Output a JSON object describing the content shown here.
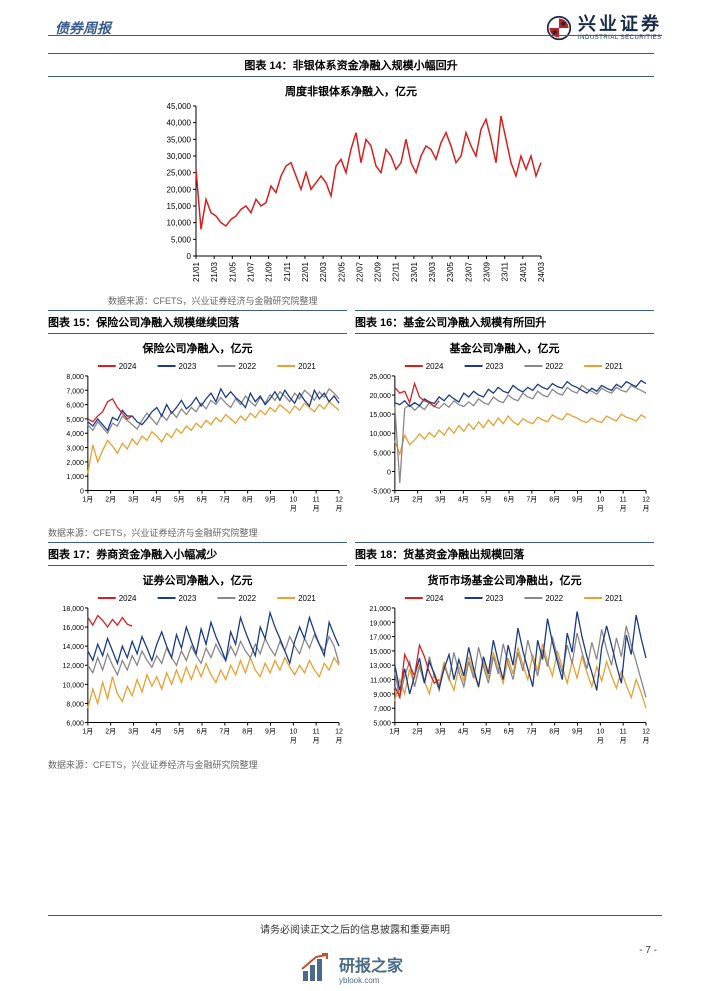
{
  "header": {
    "category": "债券周报",
    "logo_cn": "兴业证券",
    "logo_en": "INDUSTRIAL SECURITIES"
  },
  "chart14": {
    "title": "图表 14：非银体系资金净融入规模小幅回升",
    "subtitle": "周度非银体系净融入，亿元",
    "type": "line",
    "color": "#d62020",
    "ylim": [
      0,
      45000
    ],
    "ytick_step": 5000,
    "yticks": [
      "0",
      "5,000",
      "10,000",
      "15,000",
      "20,000",
      "25,000",
      "30,000",
      "35,000",
      "40,000",
      "45,000"
    ],
    "xlabels": [
      "21/01",
      "21/03",
      "21/05",
      "21/07",
      "21/09",
      "21/11",
      "22/01",
      "22/03",
      "22/05",
      "22/07",
      "22/09",
      "22/11",
      "23/01",
      "23/03",
      "23/05",
      "23/07",
      "23/09",
      "23/11",
      "24/01",
      "24/03"
    ],
    "values": [
      26000,
      8000,
      17000,
      13000,
      12000,
      10000,
      9000,
      11000,
      12000,
      14000,
      15000,
      13000,
      17000,
      15000,
      16000,
      21000,
      19000,
      24000,
      27000,
      28000,
      24000,
      20000,
      25000,
      20000,
      22000,
      24000,
      22000,
      18000,
      27000,
      29000,
      25000,
      32000,
      37000,
      28000,
      35000,
      33000,
      27000,
      25000,
      32000,
      30000,
      26000,
      28000,
      35000,
      28000,
      25000,
      30000,
      33000,
      32000,
      29000,
      34000,
      37000,
      33000,
      28000,
      30000,
      37000,
      33000,
      30000,
      38000,
      41000,
      35000,
      28000,
      42000,
      35000,
      28000,
      24000,
      30000,
      26000,
      30000,
      24000,
      28000
    ]
  },
  "source": "数据来源：CFETS，兴业证券经济与金融研究院整理",
  "chart15": {
    "title": "图表 15：保险公司净融入规模继续回落",
    "subtitle": "保险公司净融入，亿元",
    "ylim": [
      0,
      8000
    ],
    "yticks": [
      "0",
      "1,000",
      "2,000",
      "3,000",
      "4,000",
      "5,000",
      "6,000",
      "7,000",
      "8,000"
    ],
    "xlabels": [
      "1月",
      "2月",
      "3月",
      "4月",
      "5月",
      "6月",
      "7月",
      "8月",
      "9月",
      "10月",
      "11月",
      "12月"
    ],
    "series": {
      "2024": {
        "color": "#d62020",
        "values": [
          5000,
          4800,
          5200,
          5500,
          6200,
          6400,
          5800,
          5400,
          5000,
          5200
        ]
      },
      "2023": {
        "color": "#1a3a8a",
        "values": [
          4800,
          4500,
          5000,
          4600,
          4200,
          5100,
          4900,
          5600,
          5200,
          5200,
          4800,
          4600,
          5000,
          5500,
          5800,
          5200,
          6000,
          5400,
          5800,
          6300,
          5700,
          6000,
          6500,
          5900,
          6400,
          6800,
          6200,
          7100,
          6500,
          6900,
          6500,
          6200,
          5800,
          6800,
          6200,
          6600,
          6000,
          6400,
          6900,
          6300,
          7000,
          6500,
          6100,
          6800,
          6300,
          5900,
          7000,
          6400,
          6800,
          6200,
          6600,
          6100
        ]
      },
      "2022": {
        "color": "#888888",
        "values": [
          4600,
          4200,
          4800,
          4400,
          4000,
          4700,
          4500,
          5200,
          4900,
          4600,
          4300,
          4900,
          5400,
          5000,
          4600,
          5300,
          4900,
          5500,
          5100,
          5700,
          5300,
          5800,
          5500,
          6100,
          5700,
          6300,
          6000,
          6500,
          6100,
          5800,
          6400,
          6000,
          6600,
          6200,
          5900,
          6500,
          6100,
          6700,
          6300,
          6900,
          6600,
          6200,
          6800,
          6400,
          7000,
          6700,
          6300,
          6900,
          6500,
          7100,
          6800,
          6400
        ]
      },
      "2021": {
        "color": "#e8a030",
        "values": [
          1200,
          3200,
          2000,
          2800,
          3500,
          3100,
          2600,
          3300,
          2900,
          3600,
          3200,
          3800,
          3500,
          4100,
          3800,
          3400,
          4000,
          3700,
          4300,
          4000,
          4500,
          4200,
          4700,
          4400,
          4900,
          4600,
          5100,
          4800,
          5300,
          5000,
          4700,
          5200,
          4900,
          5400,
          5100,
          5600,
          5300,
          5800,
          5500,
          6000,
          5700,
          5400,
          5900,
          5600,
          6100,
          5800,
          5500,
          6000,
          5700,
          6200,
          5900,
          5600
        ]
      }
    }
  },
  "chart16": {
    "title": "图表 16：基金公司净融入规模有所回升",
    "subtitle": "基金公司净融入，亿元",
    "ylim": [
      -5000,
      25000
    ],
    "yticks": [
      "-5,000",
      "0",
      "5,000",
      "10,000",
      "15,000",
      "20,000",
      "25,000"
    ],
    "xlabels": [
      "1月",
      "2月",
      "3月",
      "4月",
      "5月",
      "6月",
      "7月",
      "8月",
      "9月",
      "10月",
      "11月",
      "12月"
    ],
    "series": {
      "2024": {
        "color": "#d62020",
        "values": [
          22000,
          20500,
          21000,
          18000,
          23000,
          19500,
          18500,
          18000,
          17000,
          18500
        ]
      },
      "2023": {
        "color": "#1a3a8a",
        "values": [
          18000,
          17500,
          18500,
          17000,
          18000,
          17200,
          19000,
          18200,
          17800,
          19500,
          18500,
          20000,
          19000,
          18200,
          20500,
          19500,
          21000,
          20000,
          19500,
          21500,
          20500,
          22000,
          21000,
          20500,
          22500,
          21500,
          20800,
          22000,
          21200,
          22800,
          22000,
          21500,
          23000,
          22200,
          21800,
          23500,
          22500,
          22000,
          21200,
          20500,
          21800,
          21000,
          22500,
          21800,
          21200,
          22800,
          22000,
          23500,
          22800,
          22200,
          23800,
          23000
        ]
      },
      "2022": {
        "color": "#888888",
        "values": [
          17000,
          -3000,
          16500,
          17500,
          16000,
          17200,
          16200,
          18000,
          17000,
          16500,
          17800,
          16800,
          18500,
          17500,
          17000,
          18200,
          17200,
          19000,
          18000,
          17500,
          19500,
          18500,
          18000,
          20000,
          19000,
          18500,
          20500,
          19500,
          19000,
          21000,
          20000,
          19500,
          21500,
          20500,
          20000,
          22000,
          21000,
          20500,
          22500,
          21500,
          21000,
          20200,
          21800,
          21000,
          20500,
          22000,
          21200,
          20800,
          22500,
          21800,
          21200,
          20500
        ]
      },
      "2021": {
        "color": "#e8a030",
        "values": [
          8000,
          4500,
          9500,
          7000,
          8200,
          9800,
          8500,
          10200,
          9000,
          10800,
          9500,
          11500,
          10000,
          12000,
          10500,
          12500,
          11000,
          13000,
          11500,
          13500,
          12000,
          14000,
          12500,
          14500,
          13000,
          12200,
          13800,
          13000,
          12500,
          14200,
          13500,
          13000,
          14800,
          14000,
          13500,
          15200,
          14500,
          14000,
          13200,
          12800,
          14000,
          13200,
          12800,
          14500,
          13800,
          13200,
          15000,
          14200,
          13800,
          13200,
          14800,
          14000
        ]
      }
    }
  },
  "chart17": {
    "title": "图表 17：券商资金净融入小幅减少",
    "subtitle": "证券公司净融入，亿元",
    "ylim": [
      6000,
      18000
    ],
    "yticks": [
      "6,000",
      "8,000",
      "10,000",
      "12,000",
      "14,000",
      "16,000",
      "18,000"
    ],
    "xlabels": [
      "1月",
      "2月",
      "3月",
      "4月",
      "5月",
      "6月",
      "7月",
      "8月",
      "9月",
      "10月",
      "11月",
      "12月"
    ],
    "series": {
      "2024": {
        "color": "#d62020",
        "values": [
          17000,
          16200,
          17200,
          16700,
          16000,
          16800,
          16200,
          17000,
          16300,
          16100
        ]
      },
      "2023": {
        "color": "#1a3a8a",
        "values": [
          13500,
          12500,
          14200,
          13000,
          14800,
          13500,
          12200,
          14000,
          12800,
          14500,
          13200,
          15000,
          13800,
          12500,
          14200,
          15500,
          14000,
          12800,
          15200,
          13800,
          16000,
          14500,
          13200,
          15800,
          14200,
          16500,
          15000,
          13800,
          12500,
          15500,
          14200,
          17000,
          15500,
          14200,
          13000,
          16000,
          14800,
          17500,
          16000,
          14800,
          13500,
          12200,
          14500,
          16000,
          14800,
          17000,
          15500,
          14200,
          13000,
          16500,
          15200,
          14000
        ]
      },
      "2022": {
        "color": "#888888",
        "values": [
          12000,
          11200,
          12800,
          11500,
          13200,
          12000,
          11000,
          12500,
          11500,
          13000,
          12000,
          13500,
          12500,
          11800,
          13000,
          12200,
          13800,
          12800,
          12000,
          13500,
          12500,
          14000,
          13000,
          12200,
          13800,
          12800,
          14200,
          13200,
          12500,
          14000,
          13000,
          14500,
          13500,
          12800,
          14200,
          13200,
          14800,
          13800,
          13000,
          14500,
          13500,
          15000,
          14000,
          13200,
          14800,
          13800,
          15200,
          14200,
          13500,
          15000,
          14000,
          12200
        ]
      },
      "2021": {
        "color": "#e8a030",
        "values": [
          7500,
          9500,
          8000,
          10200,
          8500,
          10800,
          9000,
          8200,
          9800,
          8800,
          10500,
          9200,
          11000,
          9800,
          10800,
          9500,
          11200,
          10000,
          11500,
          10200,
          11800,
          10500,
          12000,
          10800,
          12200,
          11000,
          10200,
          11500,
          10500,
          12000,
          11000,
          12500,
          11200,
          12800,
          11500,
          10800,
          12200,
          11200,
          12500,
          11500,
          12800,
          11800,
          11000,
          12000,
          11200,
          12500,
          11500,
          10800,
          12200,
          11500,
          12800,
          12000
        ]
      }
    }
  },
  "chart18": {
    "title": "图表 18：货基资金净融出规模回落",
    "subtitle": "货币市场基金公司净融出，亿元",
    "ylim": [
      5000,
      21000
    ],
    "yticks": [
      "5,000",
      "7,000",
      "9,000",
      "11,000",
      "13,000",
      "15,000",
      "17,000",
      "19,000",
      "21,000"
    ],
    "xlabels": [
      "1月",
      "2月",
      "3月",
      "4月",
      "5月",
      "6月",
      "7月",
      "8月",
      "9月",
      "10月",
      "11月",
      "12月"
    ],
    "series": {
      "2024": {
        "color": "#d62020",
        "values": [
          10000,
          8500,
          14500,
          13000,
          11500,
          15800,
          14200,
          12000,
          10500,
          11000
        ]
      },
      "2023": {
        "color": "#1a3a8a",
        "values": [
          13000,
          9500,
          12500,
          9000,
          11500,
          14000,
          10500,
          13500,
          11800,
          9800,
          12500,
          14500,
          11000,
          13800,
          11500,
          15500,
          12500,
          10000,
          14200,
          11800,
          16500,
          13500,
          11000,
          15800,
          13000,
          18200,
          15000,
          12500,
          10000,
          16500,
          13800,
          19500,
          16200,
          13500,
          11000,
          17500,
          14800,
          20500,
          17000,
          14200,
          12000,
          9500,
          15500,
          18500,
          15800,
          13000,
          10500,
          17200,
          14500,
          20000,
          16800,
          14000
        ]
      },
      "2022": {
        "color": "#888888",
        "values": [
          12000,
          8500,
          11500,
          13500,
          10000,
          12800,
          10500,
          14200,
          11500,
          9500,
          13000,
          11000,
          14800,
          12000,
          10000,
          13500,
          11200,
          15500,
          12800,
          10500,
          14200,
          11800,
          16000,
          13200,
          11000,
          14800,
          12200,
          16500,
          13800,
          11500,
          15200,
          12800,
          17000,
          14200,
          12000,
          15800,
          13200,
          17500,
          14800,
          12500,
          16200,
          13800,
          18000,
          15200,
          13000,
          16800,
          14200,
          18500,
          15800,
          13500,
          11000,
          8500
        ]
      },
      "2021": {
        "color": "#e8a030",
        "values": [
          8000,
          11000,
          9000,
          12500,
          10000,
          13200,
          10800,
          9000,
          12000,
          10200,
          13500,
          11200,
          9500,
          12800,
          10800,
          14200,
          11800,
          10000,
          13500,
          11200,
          14800,
          12500,
          10500,
          14000,
          11800,
          15500,
          13000,
          11000,
          14500,
          12200,
          16000,
          13500,
          11500,
          15000,
          12800,
          10500,
          13500,
          11200,
          14200,
          12000,
          10000,
          12800,
          10800,
          13500,
          11500,
          9800,
          12200,
          10200,
          8500,
          11000,
          9200,
          7000
        ]
      }
    }
  },
  "legend_years": [
    "2024",
    "2023",
    "2022",
    "2021"
  ],
  "legend_colors": {
    "2024": "#d62020",
    "2023": "#1a3a8a",
    "2022": "#888888",
    "2021": "#e8a030"
  },
  "footer": "请务必阅读正文之后的信息披露和重要声明",
  "page_num": "- 7 -",
  "watermark": {
    "cn": "研报之家",
    "en": "yblook.com"
  }
}
